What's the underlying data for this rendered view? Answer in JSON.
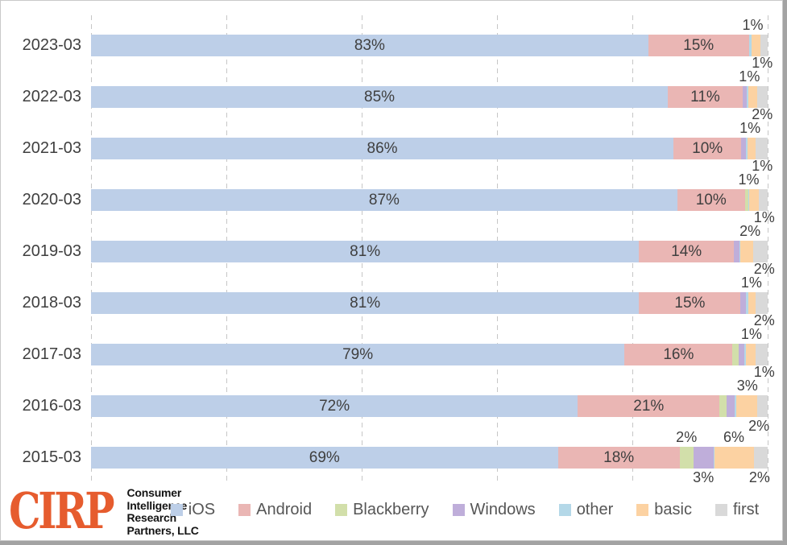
{
  "chart_data": {
    "type": "bar",
    "orientation": "horizontal",
    "stacked": true,
    "title": "",
    "x_axis": {
      "min": 0,
      "max": 100,
      "unit": "percent",
      "gridlines_pct": [
        0,
        20,
        40,
        60,
        80,
        100
      ],
      "tick_labels_visible": false
    },
    "grid": "vertical-dashed",
    "series_order": [
      "iOS",
      "Android",
      "Blackberry",
      "Windows",
      "other",
      "basic",
      "first"
    ],
    "legend": {
      "position": "bottom",
      "items": [
        {
          "label": "iOS",
          "color": "#bdcfe8"
        },
        {
          "label": "Android",
          "color": "#eab6b4"
        },
        {
          "label": "Blackberry",
          "color": "#d2dfaa"
        },
        {
          "label": "Windows",
          "color": "#bfaeda"
        },
        {
          "label": "other",
          "color": "#b4d8e8"
        },
        {
          "label": "basic",
          "color": "#fcd2a2"
        },
        {
          "label": "first",
          "color": "#d9d9d9"
        }
      ]
    },
    "rows": [
      {
        "category": "2023-03",
        "values": {
          "iOS": 83,
          "Android": 15,
          "Blackberry": 0,
          "Windows": 0,
          "other": 0.4,
          "basic": 1.3,
          "first": 1.1
        },
        "inside_labels": {
          "iOS": "83%",
          "Android": "15%"
        },
        "outside_labels": [
          {
            "text": "1%",
            "x_pct": 97.8,
            "pos": "a1"
          }
        ]
      },
      {
        "category": "2022-03",
        "values": {
          "iOS": 85,
          "Android": 11,
          "Blackberry": 0,
          "Windows": 0.6,
          "other": 0.2,
          "basic": 1.4,
          "first": 1.5
        },
        "inside_labels": {
          "iOS": "85%",
          "Android": "11%"
        },
        "outside_labels": [
          {
            "text": "1%",
            "x_pct": 99.2,
            "pos": "a2"
          },
          {
            "text": "1%",
            "x_pct": 97.3,
            "pos": "a1"
          }
        ]
      },
      {
        "category": "2021-03",
        "values": {
          "iOS": 86,
          "Android": 10,
          "Blackberry": 0,
          "Windows": 0.7,
          "other": 0.2,
          "basic": 1.2,
          "first": 1.8
        },
        "inside_labels": {
          "iOS": "86%",
          "Android": "10%"
        },
        "outside_labels": [
          {
            "text": "2%",
            "x_pct": 99.2,
            "pos": "a2"
          },
          {
            "text": "1%",
            "x_pct": 97.4,
            "pos": "a1"
          }
        ]
      },
      {
        "category": "2020-03",
        "values": {
          "iOS": 87,
          "Android": 10,
          "Blackberry": 0.5,
          "Windows": 0,
          "other": 0.2,
          "basic": 1.4,
          "first": 1.3
        },
        "inside_labels": {
          "iOS": "87%",
          "Android": "10%"
        },
        "outside_labels": [
          {
            "text": "1%",
            "x_pct": 99.2,
            "pos": "a2"
          },
          {
            "text": "1%",
            "x_pct": 97.2,
            "pos": "a1"
          }
        ]
      },
      {
        "category": "2019-03",
        "values": {
          "iOS": 81,
          "Android": 14,
          "Blackberry": 0,
          "Windows": 0.8,
          "other": 0.2,
          "basic": 1.8,
          "first": 2.2
        },
        "inside_labels": {
          "iOS": "81%",
          "Android": "14%"
        },
        "outside_labels": [
          {
            "text": "1%",
            "x_pct": 99.5,
            "pos": "a2"
          },
          {
            "text": "2%",
            "x_pct": 97.4,
            "pos": "a1"
          }
        ]
      },
      {
        "category": "2018-03",
        "values": {
          "iOS": 81,
          "Android": 15,
          "Blackberry": 0,
          "Windows": 0.8,
          "other": 0.3,
          "basic": 1.1,
          "first": 1.8
        },
        "inside_labels": {
          "iOS": "81%",
          "Android": "15%"
        },
        "outside_labels": [
          {
            "text": "2%",
            "x_pct": 99.5,
            "pos": "a2"
          },
          {
            "text": "1%",
            "x_pct": 97.6,
            "pos": "a1"
          }
        ]
      },
      {
        "category": "2017-03",
        "values": {
          "iOS": 79,
          "Android": 16,
          "Blackberry": 0.9,
          "Windows": 0.9,
          "other": 0.2,
          "basic": 1.4,
          "first": 1.8
        },
        "inside_labels": {
          "iOS": "79%",
          "Android": "16%"
        },
        "outside_labels": [
          {
            "text": "2%",
            "x_pct": 99.5,
            "pos": "a2"
          },
          {
            "text": "1%",
            "x_pct": 97.6,
            "pos": "a1"
          }
        ]
      },
      {
        "category": "2016-03",
        "values": {
          "iOS": 72,
          "Android": 21,
          "Blackberry": 1,
          "Windows": 1.2,
          "other": 0.3,
          "basic": 3,
          "first": 1.6
        },
        "inside_labels": {
          "iOS": "72%",
          "Android": "21%"
        },
        "outside_labels": [
          {
            "text": "1%",
            "x_pct": 99.5,
            "pos": "a2"
          },
          {
            "text": "3%",
            "x_pct": 97.0,
            "pos": "a1"
          },
          {
            "text": "2%",
            "x_pct": 98.7,
            "pos": "b1"
          }
        ]
      },
      {
        "category": "2015-03",
        "values": {
          "iOS": 69,
          "Android": 18,
          "Blackberry": 2,
          "Windows": 3,
          "other": 0.2,
          "basic": 5.8,
          "first": 2
        },
        "inside_labels": {
          "iOS": "69%",
          "Android": "18%"
        },
        "outside_labels": [
          {
            "text": "2%",
            "x_pct": 88.0,
            "pos": "a1"
          },
          {
            "text": "6%",
            "x_pct": 95.0,
            "pos": "a1"
          },
          {
            "text": "3%",
            "x_pct": 90.5,
            "pos": "b1"
          },
          {
            "text": "2%",
            "x_pct": 98.8,
            "pos": "b1"
          }
        ]
      }
    ]
  },
  "branding": {
    "logo_text": "CIRP",
    "logo_lines": [
      "Consumer",
      "Intelligence",
      "Research",
      "Partners, LLC"
    ],
    "logo_color": "#e65c2e"
  }
}
